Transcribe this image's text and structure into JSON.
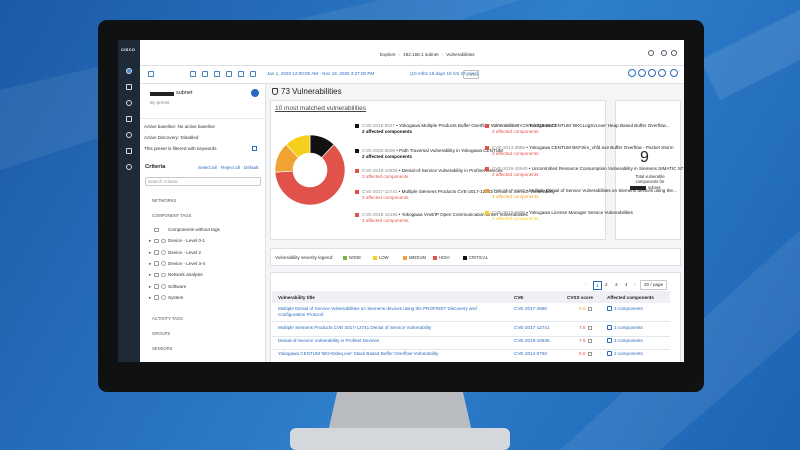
{
  "app": {
    "logo": "CISCO"
  },
  "topbar": {
    "breadcrumb": [
      "Explore",
      "192.168.1 subnet",
      "Vulnerabilities"
    ]
  },
  "toolbar": {
    "time_range": "Jan 1, 2020 12:00:00 AM - Nov 19, 2020 3:27:00 PM",
    "time_span": "(10 mths 19 days 15 hrs 27 mins)",
    "live": "LIVE"
  },
  "left_panel": {
    "title": "subnet",
    "subtitle": "By preset",
    "info": [
      "Active baseline:  No active baseline",
      "Active Discovery:  Disabled",
      "This preset is filtered with keywords"
    ],
    "criteria": "Criteria",
    "actions": [
      "Select all",
      "Reject all",
      "Default"
    ],
    "search": "Search criteria",
    "sections": [
      "NETWORKS",
      "COMPONENT TAGS"
    ],
    "tags": [
      "Components without tags",
      "Device - Level 0-1",
      "Device - Level 2",
      "Device - Level 3-4",
      "Network analysis",
      "Software",
      "System"
    ],
    "bottom_sections": [
      "ACTIVITY TAGS",
      "GROUPS",
      "SENSORS"
    ]
  },
  "main": {
    "title": "73 Vulnerabilities",
    "matched_title": "10 most matched vulnerabilities",
    "donut": {
      "values": [
        12,
        62,
        14,
        12
      ],
      "colors": [
        "#111111",
        "#e0524a",
        "#f0a232",
        "#f4cf1c"
      ]
    },
    "matched": [
      {
        "id": "CVE-2015-5627",
        "name": "Yokogawa Multiple Products Buffer Overflow Vulnerabilities - CVE-2015-5627",
        "count": "2 affected components",
        "color": "#111111"
      },
      {
        "id": "CVE-2020-5609",
        "name": "Path Traversal Vulnerability in Yokogawa CENTUM",
        "count": "2 affected components",
        "color": "#111111"
      },
      {
        "id": "CVE-2019-10936",
        "name": "Denial-of-Service Vulnerability in Profinet Devices",
        "count": "3 affected components",
        "color": "#e0524a"
      },
      {
        "id": "CVE-2017-12741",
        "name": "Multiple Siemens Products CVE-2017-12741 Denial of Service Vulnerability",
        "count": "3 affected components",
        "color": "#e0524a"
      },
      {
        "id": "CVE-2018-16196",
        "name": "Yokogawa Vnet/IP Open Communication Driver Vulnerabilities",
        "count": "2 affected components",
        "color": "#e0524a"
      },
      {
        "id": "CVE-2014-0781",
        "name": "Yokogawa CENTUM 'BKCLogSvr.exe' Heap Based Buffer Overflow...",
        "count": "2 affected components",
        "color": "#e0524a"
      },
      {
        "id": "CVE-2014-3888",
        "name": "Yokogawa CENTUM BKFSim_vhfd.exe Buffer Overflow - Packet Storm",
        "count": "2 affected components",
        "color": "#e0524a"
      },
      {
        "id": "CVE-2019-10940",
        "name": "Uncontrolled Resource Consumption Vulnerability in Siemens SIMATIC S7",
        "count": "2 affected components",
        "color": "#e0524a"
      },
      {
        "id": "CVE-2017-2680",
        "name": "Multiple Denial of Service Vulnerabilities on Siemens devices using the...",
        "count": "3 affected components",
        "color": "#f0a232"
      },
      {
        "id": "CVE-2019-5909",
        "name": "Yokogawa License Manager Service Vulnerabilities",
        "count": "2 affected components",
        "color": "#f4cf1c"
      }
    ],
    "total": {
      "value": "9",
      "label": "Total vulnerable components for",
      "subnet": "subnet"
    },
    "legend_title": "Vulnerability severity legend:",
    "legend": [
      {
        "name": "NONE",
        "color": "#7cb342"
      },
      {
        "name": "LOW",
        "color": "#f4cf1c"
      },
      {
        "name": "MEDIUM",
        "color": "#f0a232"
      },
      {
        "name": "HIGH",
        "color": "#e0524a"
      },
      {
        "name": "CRITICAL",
        "color": "#111111"
      }
    ],
    "pages": [
      "1",
      "2",
      "3",
      "4"
    ],
    "page_size": "20 / page",
    "table": {
      "headers": [
        "Vulnerability title",
        "CVE",
        "CVSS score",
        "Affected components"
      ],
      "rows": [
        [
          "Multiple Denial of Service Vulnerabilities on Siemens devices using the PROFINET Discovery and Configuration Protocol",
          "CVE-2017-2680",
          "6.5",
          "3 components"
        ],
        [
          "Multiple Siemens Products CVE-2017-12741 Denial of Service Vulnerability",
          "CVE-2017-12741",
          "7.5",
          "3 components"
        ],
        [
          "Denial-of-Service Vulnerability in Profinet Devices",
          "CVE-2019-10936",
          "7.5",
          "3 components"
        ],
        [
          "Yokogawa CENTUM 'BKHOdeq.exe' Stack Based Buffer Overflow Vulnerability",
          "CVE-2014-0783",
          "9.0",
          "2 components"
        ]
      ]
    }
  }
}
